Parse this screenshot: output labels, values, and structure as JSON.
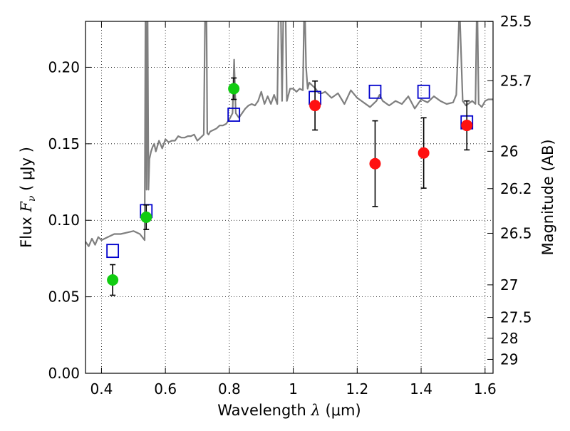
{
  "chart_data": {
    "type": "scatter",
    "title": "",
    "xlabel": {
      "prefix": "Wavelength  ",
      "symbol": "λ",
      "unit": " (μm)"
    },
    "ylabel": {
      "prefix": "Flux  ",
      "symbol": "F",
      "subscript": "ν",
      "unit": "  ( μJy )"
    },
    "ylabel_right": "Magnitude (AB)",
    "xlim": [
      0.35,
      1.625
    ],
    "ylim": [
      0.0,
      0.23
    ],
    "grid": true,
    "grid_style": "dotted",
    "x_ticks": [
      0.4,
      0.6,
      0.8,
      1.0,
      1.2,
      1.4,
      1.6
    ],
    "x_tick_labels": [
      "0.4",
      "0.6",
      "0.8",
      "1",
      "1.2",
      "1.4",
      "1.6"
    ],
    "y_ticks": [
      0.0,
      0.05,
      0.1,
      0.15,
      0.2
    ],
    "y_tick_labels": [
      "0.00",
      "0.05",
      "0.10",
      "0.15",
      "0.20"
    ],
    "right_axis_ticks": [
      {
        "label": "25.5",
        "flux": 0.2299
      },
      {
        "label": "25.7",
        "flux": 0.1912
      },
      {
        "label": "26",
        "flux": 0.1451
      },
      {
        "label": "26.2",
        "flux": 0.1207
      },
      {
        "label": "26.5",
        "flux": 0.0915
      },
      {
        "label": "27",
        "flux": 0.0578
      },
      {
        "label": "27.5",
        "flux": 0.0365
      },
      {
        "label": "28",
        "flux": 0.0229
      },
      {
        "label": "29",
        "flux": 0.0091
      }
    ],
    "series": [
      {
        "kind": "model_spectrum",
        "color": "#7f7f7f",
        "x": [
          0.35,
          0.36,
          0.37,
          0.38,
          0.39,
          0.4,
          0.42,
          0.44,
          0.46,
          0.48,
          0.5,
          0.52,
          0.535,
          0.538,
          0.541,
          0.544,
          0.547,
          0.55,
          0.555,
          0.56,
          0.565,
          0.57,
          0.58,
          0.59,
          0.6,
          0.61,
          0.62,
          0.63,
          0.64,
          0.65,
          0.66,
          0.67,
          0.68,
          0.69,
          0.7,
          0.71,
          0.72,
          0.725,
          0.728,
          0.731,
          0.735,
          0.74,
          0.75,
          0.76,
          0.77,
          0.78,
          0.79,
          0.8,
          0.81,
          0.815,
          0.82,
          0.83,
          0.84,
          0.85,
          0.86,
          0.87,
          0.88,
          0.89,
          0.9,
          0.91,
          0.92,
          0.93,
          0.94,
          0.95,
          0.955,
          0.96,
          0.965,
          0.97,
          0.975,
          0.98,
          0.99,
          1.0,
          1.01,
          1.02,
          1.03,
          1.035,
          1.04,
          1.045,
          1.05,
          1.06,
          1.07,
          1.08,
          1.09,
          1.1,
          1.12,
          1.14,
          1.16,
          1.18,
          1.2,
          1.22,
          1.24,
          1.26,
          1.27,
          1.28,
          1.3,
          1.32,
          1.34,
          1.36,
          1.38,
          1.4,
          1.42,
          1.44,
          1.46,
          1.48,
          1.5,
          1.51,
          1.515,
          1.52,
          1.525,
          1.53,
          1.54,
          1.56,
          1.57,
          1.575,
          1.58,
          1.59,
          1.6,
          1.61,
          1.625
        ],
        "y": [
          0.086,
          0.083,
          0.088,
          0.084,
          0.089,
          0.087,
          0.089,
          0.091,
          0.091,
          0.092,
          0.093,
          0.091,
          0.087,
          0.25,
          0.12,
          0.25,
          0.12,
          0.14,
          0.145,
          0.148,
          0.15,
          0.145,
          0.152,
          0.147,
          0.153,
          0.151,
          0.152,
          0.152,
          0.155,
          0.154,
          0.154,
          0.155,
          0.155,
          0.156,
          0.152,
          0.154,
          0.156,
          0.25,
          0.25,
          0.157,
          0.156,
          0.158,
          0.159,
          0.16,
          0.162,
          0.162,
          0.163,
          0.166,
          0.17,
          0.205,
          0.17,
          0.167,
          0.17,
          0.173,
          0.175,
          0.176,
          0.175,
          0.178,
          0.184,
          0.176,
          0.181,
          0.176,
          0.182,
          0.176,
          0.25,
          0.25,
          0.178,
          0.25,
          0.25,
          0.178,
          0.186,
          0.186,
          0.184,
          0.186,
          0.185,
          0.25,
          0.2,
          0.186,
          0.19,
          0.188,
          0.186,
          0.183,
          0.183,
          0.184,
          0.18,
          0.183,
          0.176,
          0.185,
          0.18,
          0.177,
          0.174,
          0.178,
          0.182,
          0.178,
          0.175,
          0.178,
          0.176,
          0.181,
          0.173,
          0.179,
          0.177,
          0.181,
          0.178,
          0.176,
          0.177,
          0.182,
          0.21,
          0.24,
          0.21,
          0.178,
          0.175,
          0.178,
          0.176,
          0.25,
          0.176,
          0.174,
          0.178,
          0.179,
          0.179
        ]
      },
      {
        "kind": "model_photometry",
        "marker": "open-square",
        "color": "#0000cc",
        "x": [
          0.435,
          0.54,
          0.814,
          1.068,
          1.256,
          1.408,
          1.543
        ],
        "y": [
          0.08,
          0.106,
          0.169,
          0.18,
          0.184,
          0.184,
          0.164
        ]
      },
      {
        "kind": "observed_optical",
        "marker": "filled-circle",
        "color": "#11cc11",
        "x": [
          0.435,
          0.54,
          0.814
        ],
        "y": [
          0.061,
          0.102,
          0.186
        ],
        "yerr": [
          0.01,
          0.008,
          0.007
        ]
      },
      {
        "kind": "observed_nir",
        "marker": "filled-circle",
        "color": "#ff1111",
        "x": [
          1.068,
          1.256,
          1.408,
          1.543
        ],
        "y": [
          0.175,
          0.137,
          0.144,
          0.162
        ],
        "yerr": [
          0.016,
          0.028,
          0.023,
          0.016
        ]
      }
    ]
  }
}
